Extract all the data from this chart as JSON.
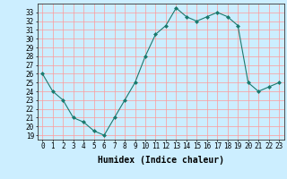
{
  "x": [
    0,
    1,
    2,
    3,
    4,
    5,
    6,
    7,
    8,
    9,
    10,
    11,
    12,
    13,
    14,
    15,
    16,
    17,
    18,
    19,
    20,
    21,
    22,
    23
  ],
  "y": [
    26,
    24,
    23,
    21,
    20.5,
    19.5,
    19,
    21,
    23,
    25,
    28,
    30.5,
    31.5,
    33.5,
    32.5,
    32,
    32.5,
    33,
    32.5,
    31.5,
    25,
    24,
    24.5,
    25
  ],
  "line_color": "#1a7a6e",
  "marker": "D",
  "marker_size": 2,
  "bg_color": "#cceeff",
  "grid_color": "#ff9999",
  "xlabel": "Humidex (Indice chaleur)",
  "xlim": [
    -0.5,
    23.5
  ],
  "ylim": [
    18.5,
    34.0
  ],
  "yticks": [
    19,
    20,
    21,
    22,
    23,
    24,
    25,
    26,
    27,
    28,
    29,
    30,
    31,
    32,
    33
  ],
  "xticks": [
    0,
    1,
    2,
    3,
    4,
    5,
    6,
    7,
    8,
    9,
    10,
    11,
    12,
    13,
    14,
    15,
    16,
    17,
    18,
    19,
    20,
    21,
    22,
    23
  ],
  "xlabel_fontsize": 7,
  "tick_fontsize": 5.5
}
